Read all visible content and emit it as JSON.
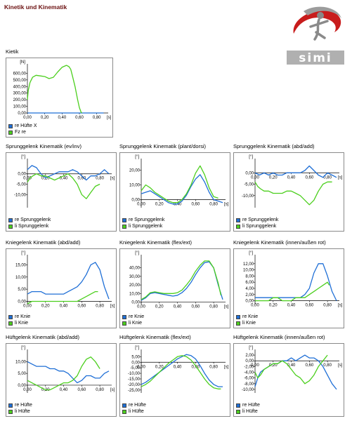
{
  "page": {
    "title": "Kinetik und Kinematik"
  },
  "logo": {
    "text": "simi"
  },
  "colors": {
    "re": "#1f6fd6",
    "li": "#4ccf1e",
    "title": "#6b1010"
  },
  "chart_data": [
    {
      "id": "kinetik",
      "title": "Kietik",
      "type": "line",
      "xlim": [
        0,
        0.9
      ],
      "ylim": [
        0,
        700
      ],
      "xticks": [
        "0,00",
        "0,20",
        "0,40",
        "0,60",
        "0,80"
      ],
      "xunit": "[s]",
      "yticks": [
        "0,00",
        "100,00",
        "200,00",
        "300,00",
        "400,00",
        "500,00",
        "600,00"
      ],
      "yunit": "[N]",
      "series": [
        {
          "name": "re Hüfte X",
          "color": "re",
          "x": [
            0,
            0.05,
            0.1,
            0.2,
            0.3,
            0.4,
            0.5,
            0.55,
            0.6,
            0.62,
            0.65,
            0.7,
            0.8,
            0.88
          ],
          "y": [
            0,
            0,
            0,
            0,
            0,
            0,
            0,
            0,
            0,
            0,
            0,
            0,
            0,
            0
          ]
        },
        {
          "name": "Fz re",
          "color": "li",
          "x": [
            0,
            0.01,
            0.03,
            0.06,
            0.1,
            0.15,
            0.2,
            0.25,
            0.3,
            0.35,
            0.4,
            0.45,
            0.48,
            0.5,
            0.52,
            0.55,
            0.58,
            0.6,
            0.62,
            0.63
          ],
          "y": [
            200,
            340,
            460,
            540,
            570,
            560,
            550,
            520,
            540,
            620,
            690,
            720,
            700,
            660,
            560,
            400,
            200,
            80,
            10,
            0
          ]
        }
      ]
    },
    {
      "id": "sprung-evinv",
      "title": "Sprunggelenk Kinematik (ev/inv)",
      "type": "line",
      "xlim": [
        0,
        0.9
      ],
      "ylim": [
        -16,
        6
      ],
      "xticks": [
        "0,00",
        "0,20",
        "0,40",
        "0,60",
        "0,80"
      ],
      "xunit": "[s]",
      "yticks": [
        "-10,00",
        "-5,00",
        "0,00"
      ],
      "yunit": "[°]",
      "series": [
        {
          "name": "re Sprunggelenk",
          "color": "re",
          "x": [
            0,
            0.05,
            0.1,
            0.15,
            0.2,
            0.25,
            0.3,
            0.35,
            0.4,
            0.45,
            0.5,
            0.55,
            0.6,
            0.65,
            0.7,
            0.75,
            0.8,
            0.85,
            0.9
          ],
          "y": [
            2,
            4,
            3,
            0,
            -2,
            -1,
            0,
            1,
            1,
            1,
            2,
            1,
            -1,
            -3,
            -1,
            -1,
            0,
            2,
            0
          ]
        },
        {
          "name": "li Sprunggelenk",
          "color": "li",
          "x": [
            0,
            0.03,
            0.06,
            0.1,
            0.15,
            0.2,
            0.25,
            0.3,
            0.35,
            0.4,
            0.45,
            0.5,
            0.55,
            0.6,
            0.65,
            0.7,
            0.75,
            0.8
          ],
          "y": [
            -4,
            -2,
            -1,
            0,
            -1,
            -1,
            -2,
            -3,
            -2,
            -1,
            0,
            -2,
            -5,
            -10,
            -12,
            -9,
            -6,
            -5
          ]
        }
      ]
    },
    {
      "id": "sprung-plant",
      "title": "Sprunggelenk Kinematik (plant/dorsi)",
      "type": "line",
      "xlim": [
        0,
        0.9
      ],
      "ylim": [
        -5,
        26
      ],
      "xticks": [
        "0,00",
        "0,20",
        "0,40",
        "0,60",
        "0,80"
      ],
      "xunit": "[s]",
      "yticks": [
        "0,00",
        "10,00",
        "20,00"
      ],
      "yunit": "[°]",
      "series": [
        {
          "name": "re Sprunggelenk",
          "color": "re",
          "x": [
            0,
            0.05,
            0.1,
            0.15,
            0.2,
            0.25,
            0.3,
            0.35,
            0.4,
            0.45,
            0.5,
            0.55,
            0.6,
            0.65,
            0.7,
            0.75,
            0.8,
            0.85,
            0.9
          ],
          "y": [
            4,
            5,
            6,
            4,
            2,
            0,
            -2,
            -3,
            -3,
            -1,
            3,
            9,
            14,
            17,
            12,
            5,
            0,
            -1,
            -2
          ]
        },
        {
          "name": "li Sprunggelenk",
          "color": "li",
          "x": [
            0,
            0.05,
            0.1,
            0.15,
            0.2,
            0.25,
            0.3,
            0.35,
            0.4,
            0.45,
            0.5,
            0.55,
            0.6,
            0.65,
            0.7,
            0.75,
            0.8,
            0.85
          ],
          "y": [
            6,
            10,
            8,
            5,
            3,
            1,
            -1,
            -2,
            -2,
            0,
            4,
            10,
            18,
            23,
            17,
            8,
            2,
            1
          ]
        }
      ]
    },
    {
      "id": "sprung-abd",
      "title": "Sprunggelenk Kinematik (abd/add)",
      "type": "line",
      "xlim": [
        0,
        0.9
      ],
      "ylim": [
        -15,
        5
      ],
      "xticks": [
        "0,00",
        "0,20",
        "0,40",
        "0,60",
        "0,80"
      ],
      "xunit": "[s]",
      "yticks": [
        "-10,00",
        "-5,00",
        "0,00"
      ],
      "yunit": "[°]",
      "series": [
        {
          "name": "re Sprunggelenk",
          "color": "re",
          "x": [
            0,
            0.05,
            0.1,
            0.15,
            0.2,
            0.25,
            0.3,
            0.35,
            0.4,
            0.45,
            0.5,
            0.55,
            0.6,
            0.65,
            0.7,
            0.75,
            0.8,
            0.85,
            0.9
          ],
          "y": [
            0,
            -1,
            0,
            -1,
            0,
            -1,
            -1,
            0,
            0,
            0,
            0,
            1,
            3,
            1,
            -1,
            -2,
            0,
            -1,
            -2
          ]
        },
        {
          "name": "li Sprunggelenk",
          "color": "li",
          "x": [
            0,
            0.03,
            0.06,
            0.1,
            0.15,
            0.2,
            0.25,
            0.3,
            0.35,
            0.4,
            0.45,
            0.5,
            0.55,
            0.6,
            0.65,
            0.7,
            0.75,
            0.8,
            0.85
          ],
          "y": [
            -4,
            -6,
            -7,
            -8,
            -8,
            -9,
            -9,
            -9,
            -8,
            -8,
            -9,
            -10,
            -12,
            -14,
            -12,
            -8,
            -5,
            -4,
            -4
          ]
        }
      ]
    },
    {
      "id": "knie-abd",
      "title": "Kniegelenk Kinematik (abd/add)",
      "type": "line",
      "xlim": [
        0,
        0.9
      ],
      "ylim": [
        -1,
        18
      ],
      "xticks": [
        "0,00",
        "0,20",
        "0,40",
        "0,60",
        "0,80"
      ],
      "xunit": "[s]",
      "yticks": [
        "0,00",
        "5,00",
        "10,00",
        "15,00"
      ],
      "yunit": "[°]",
      "series": [
        {
          "name": "re Knie",
          "color": "re",
          "x": [
            0,
            0.05,
            0.1,
            0.15,
            0.2,
            0.25,
            0.3,
            0.35,
            0.4,
            0.45,
            0.5,
            0.55,
            0.6,
            0.65,
            0.7,
            0.75,
            0.8,
            0.85,
            0.9
          ],
          "y": [
            3,
            4,
            4,
            4,
            3,
            3,
            3,
            3,
            3,
            4,
            5,
            6,
            8,
            11,
            15,
            16,
            13,
            6,
            1
          ]
        },
        {
          "name": "li Knie",
          "color": "li",
          "x": [
            0,
            0.05,
            0.1,
            0.15,
            0.2,
            0.25,
            0.3,
            0.35,
            0.4,
            0.45,
            0.5,
            0.55,
            0.6,
            0.65,
            0.7,
            0.75,
            0.78
          ],
          "y": [
            -1,
            0,
            0,
            0,
            0,
            0,
            0,
            0,
            0,
            0,
            0,
            0,
            1,
            2,
            3,
            4,
            4
          ]
        }
      ]
    },
    {
      "id": "knie-flex",
      "title": "Kniegelenk Kinematik (flex/ext)",
      "type": "line",
      "xlim": [
        0,
        0.9
      ],
      "ylim": [
        -2,
        52
      ],
      "xticks": [
        "0,00",
        "0,20",
        "0,40",
        "0,60",
        "0,80"
      ],
      "xunit": "[s]",
      "yticks": [
        "0,00",
        "10,00",
        "20,00",
        "30,00",
        "40,00"
      ],
      "yunit": "[°]",
      "series": [
        {
          "name": "re Knie",
          "color": "re",
          "x": [
            0,
            0.05,
            0.1,
            0.15,
            0.2,
            0.25,
            0.3,
            0.35,
            0.4,
            0.45,
            0.5,
            0.55,
            0.6,
            0.65,
            0.7,
            0.75,
            0.8,
            0.85,
            0.9
          ],
          "y": [
            2,
            5,
            10,
            11,
            10,
            9,
            8,
            7,
            8,
            11,
            16,
            23,
            32,
            40,
            46,
            47,
            40,
            20,
            3
          ]
        },
        {
          "name": "li Knie",
          "color": "li",
          "x": [
            0,
            0.05,
            0.1,
            0.15,
            0.2,
            0.25,
            0.3,
            0.35,
            0.4,
            0.45,
            0.5,
            0.55,
            0.6,
            0.65,
            0.7,
            0.75,
            0.8,
            0.85,
            0.88
          ],
          "y": [
            3,
            6,
            11,
            12,
            11,
            10,
            10,
            10,
            11,
            14,
            20,
            27,
            36,
            43,
            48,
            48,
            40,
            22,
            8
          ]
        }
      ]
    },
    {
      "id": "knie-rot",
      "title": "Kniegelenk Kinematik (innen/außen rot)",
      "type": "line",
      "xlim": [
        0,
        0.9
      ],
      "ylim": [
        -1,
        14
      ],
      "xticks": [
        "0,00",
        "0,20",
        "0,40",
        "0,60",
        "0,80"
      ],
      "xunit": "[s]",
      "yticks": [
        "0,00",
        "2,00",
        "4,00",
        "6,00",
        "8,00",
        "10,00",
        "12,00"
      ],
      "yunit": "[°]",
      "series": [
        {
          "name": "re Knie",
          "color": "re",
          "x": [
            0,
            0.05,
            0.1,
            0.15,
            0.2,
            0.25,
            0.3,
            0.35,
            0.4,
            0.45,
            0.5,
            0.55,
            0.6,
            0.65,
            0.7,
            0.75,
            0.8,
            0.85,
            0.9
          ],
          "y": [
            1,
            1,
            1,
            1,
            1,
            1,
            1,
            1,
            1,
            1,
            1,
            2,
            4,
            9,
            12,
            12,
            8,
            3,
            0
          ]
        },
        {
          "name": "li Knie",
          "color": "li",
          "x": [
            0,
            0.05,
            0.1,
            0.15,
            0.2,
            0.25,
            0.3,
            0.35,
            0.4,
            0.45,
            0.5,
            0.55,
            0.6,
            0.65,
            0.7,
            0.75,
            0.8,
            0.82
          ],
          "y": [
            0,
            0,
            0,
            0,
            1,
            1,
            0,
            0,
            0,
            1,
            1,
            1,
            2,
            3,
            4,
            5,
            6,
            5
          ]
        }
      ]
    },
    {
      "id": "huefte-abd",
      "title": "Hüftgelenk Kinematik (abd/add)",
      "type": "line",
      "xlim": [
        0,
        0.9
      ],
      "ylim": [
        -3,
        14
      ],
      "xticks": [
        "0,00",
        "0,20",
        "0,40",
        "0,60",
        "0,80"
      ],
      "xunit": "[s]",
      "yticks": [
        "0,00",
        "5,00",
        "10,00"
      ],
      "yunit": "[°]",
      "series": [
        {
          "name": "re Hüfte",
          "color": "re",
          "x": [
            0,
            0.05,
            0.1,
            0.15,
            0.2,
            0.25,
            0.3,
            0.35,
            0.4,
            0.45,
            0.5,
            0.55,
            0.6,
            0.65,
            0.7,
            0.75,
            0.8,
            0.85,
            0.9
          ],
          "y": [
            10,
            9,
            8,
            8,
            8,
            7,
            7,
            6,
            6,
            5,
            3,
            1,
            2,
            4,
            4,
            3,
            3,
            5,
            6
          ]
        },
        {
          "name": "li Hüfte",
          "color": "li",
          "x": [
            0,
            0.05,
            0.1,
            0.15,
            0.2,
            0.25,
            0.3,
            0.35,
            0.4,
            0.45,
            0.5,
            0.55,
            0.6,
            0.65,
            0.7,
            0.75,
            0.8
          ],
          "y": [
            2,
            1,
            0,
            -1,
            -2,
            -2,
            -1,
            0,
            1,
            1,
            2,
            4,
            8,
            11,
            12,
            10,
            7
          ]
        }
      ]
    },
    {
      "id": "huefte-flex",
      "title": "Hüftgelenk Kinematik (flex/ext)",
      "type": "line",
      "xlim": [
        0,
        0.9
      ],
      "ylim": [
        -27,
        9
      ],
      "xticks": [
        "0,00",
        "0,20",
        "0,40",
        "0,60",
        "0,80"
      ],
      "xunit": "[s]",
      "yticks": [
        "-25,00",
        "-20,00",
        "-15,00",
        "-10,00",
        "-5,00",
        "0,00",
        "5,00"
      ],
      "yunit": "[°]",
      "series": [
        {
          "name": "re Hüfte",
          "color": "re",
          "x": [
            0,
            0.05,
            0.1,
            0.15,
            0.2,
            0.25,
            0.3,
            0.35,
            0.4,
            0.45,
            0.5,
            0.55,
            0.6,
            0.65,
            0.7,
            0.75,
            0.8,
            0.85,
            0.9
          ],
          "y": [
            -20,
            -18,
            -15,
            -12,
            -9,
            -6,
            -3,
            0,
            3,
            5,
            7,
            6,
            3,
            -3,
            -10,
            -16,
            -20,
            -22,
            -22
          ]
        },
        {
          "name": "li Hüfte",
          "color": "li",
          "x": [
            0,
            0.05,
            0.1,
            0.15,
            0.2,
            0.25,
            0.3,
            0.35,
            0.4,
            0.45,
            0.5,
            0.55,
            0.6,
            0.65,
            0.7,
            0.75,
            0.8,
            0.85,
            0.88
          ],
          "y": [
            -22,
            -20,
            -17,
            -13,
            -9,
            -5,
            -1,
            2,
            5,
            6,
            5,
            2,
            -3,
            -9,
            -15,
            -20,
            -23,
            -24,
            -24
          ]
        }
      ]
    },
    {
      "id": "huefte-rot",
      "title": "Hüftgelenk Kinematik (innen/außen rot)",
      "type": "line",
      "xlim": [
        0,
        0.9
      ],
      "ylim": [
        -11,
        3
      ],
      "xticks": [
        "0,00",
        "0,20",
        "0,40",
        "0,60",
        "0,80"
      ],
      "xunit": "[s]",
      "yticks": [
        "-10,00",
        "-8,00",
        "-6,00",
        "-4,00",
        "-2,00",
        "0,00",
        "2,00"
      ],
      "yunit": "[°]",
      "series": [
        {
          "name": "re Hüfte",
          "color": "re",
          "x": [
            0,
            0.03,
            0.06,
            0.1,
            0.15,
            0.2,
            0.25,
            0.3,
            0.35,
            0.4,
            0.45,
            0.5,
            0.55,
            0.6,
            0.65,
            0.7,
            0.75,
            0.8,
            0.85,
            0.9
          ],
          "y": [
            -9,
            -6,
            -4,
            -3,
            -2,
            -1,
            -1,
            0,
            0,
            1,
            0,
            1,
            2,
            1,
            1,
            0,
            -2,
            -5,
            -8,
            -10
          ]
        },
        {
          "name": "li Hüfte",
          "color": "li",
          "x": [
            0,
            0.03,
            0.06,
            0.1,
            0.15,
            0.2,
            0.25,
            0.3,
            0.35,
            0.4,
            0.45,
            0.5,
            0.55,
            0.6,
            0.65,
            0.7,
            0.75,
            0.8
          ],
          "y": [
            -4,
            -6,
            -5,
            -3,
            -2,
            -1,
            -1,
            0,
            -1,
            -3,
            -5,
            -6,
            -8,
            -7,
            -5,
            -2,
            0,
            2
          ]
        }
      ]
    }
  ]
}
